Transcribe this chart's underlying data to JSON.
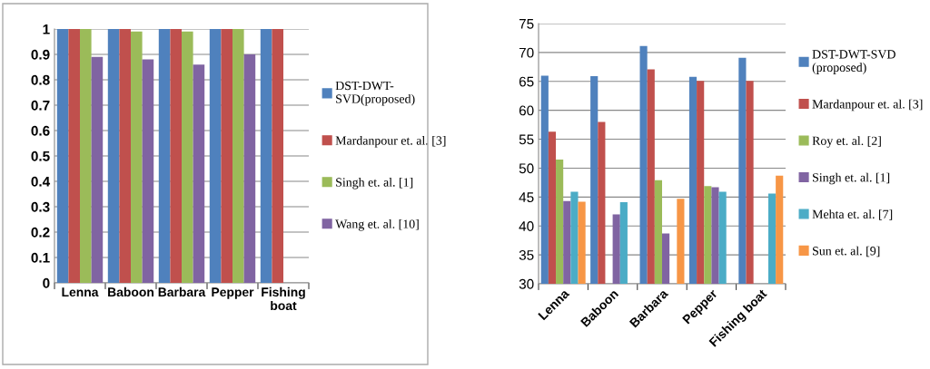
{
  "chart_data": [
    {
      "type": "bar",
      "categories": [
        "Lenna",
        "Baboon",
        "Barbara",
        "Pepper",
        "Fishing\nboat"
      ],
      "ylim": [
        0,
        1
      ],
      "yticks": [
        0,
        0.1,
        0.2,
        0.3,
        0.4,
        0.5,
        0.6,
        0.7,
        0.8,
        0.9,
        1
      ],
      "grid": "y",
      "legend": "right",
      "series": [
        {
          "name": "DST-DWT-\nSVD(proposed)",
          "color": "#4f81bd",
          "values": [
            1,
            1,
            1,
            1,
            1
          ]
        },
        {
          "name": "Mardanpour et. al. [3]",
          "color": "#c0504d",
          "values": [
            1,
            1,
            1,
            1,
            1
          ]
        },
        {
          "name": "Singh et. al. [1]",
          "color": "#9bbb59",
          "values": [
            1,
            0.99,
            0.99,
            1,
            null
          ]
        },
        {
          "name": "Wang et. al. [10]",
          "color": "#8064a2",
          "values": [
            0.89,
            0.88,
            0.86,
            0.9,
            null
          ]
        }
      ]
    },
    {
      "type": "bar",
      "categories": [
        "Lenna",
        "Baboon",
        "Barbara",
        "Pepper",
        "Fishing boat"
      ],
      "ylim": [
        30,
        75
      ],
      "yticks": [
        30,
        35,
        40,
        45,
        50,
        55,
        60,
        65,
        70,
        75
      ],
      "grid": "y",
      "legend": "right",
      "series": [
        {
          "name": "DST-DWT-SVD\n(proposed)",
          "color": "#4f81bd",
          "values": [
            66,
            65.9,
            71.1,
            65.8,
            69.1
          ]
        },
        {
          "name": "Mardanpour et. al. [3]",
          "color": "#c0504d",
          "values": [
            56.3,
            58,
            67.1,
            65.1,
            65.1
          ]
        },
        {
          "name": "Roy et. al. [2]",
          "color": "#9bbb59",
          "values": [
            51.5,
            null,
            47.9,
            46.9,
            null
          ]
        },
        {
          "name": "Singh et. al. [1]",
          "color": "#8064a2",
          "values": [
            44.3,
            42,
            38.7,
            46.7,
            null
          ]
        },
        {
          "name": "Mehta et. al. [7]",
          "color": "#4bacc6",
          "values": [
            45.9,
            44.1,
            null,
            45.9,
            45.6
          ]
        },
        {
          "name": "Sun et. al. [9]",
          "color": "#f79646",
          "values": [
            44.2,
            null,
            44.7,
            null,
            48.7
          ]
        }
      ]
    }
  ]
}
